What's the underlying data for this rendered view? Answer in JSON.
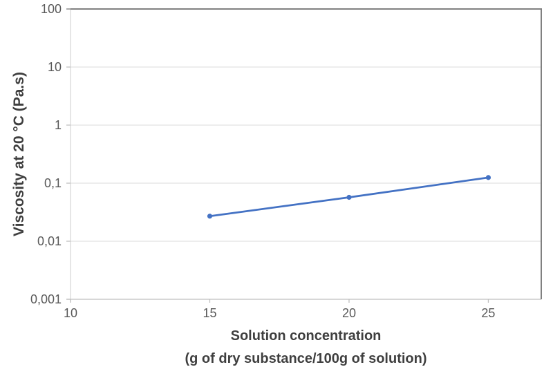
{
  "chart_data": {
    "type": "line",
    "title": "",
    "x": [
      15,
      20,
      25
    ],
    "series": [
      {
        "name": "viscosity",
        "values": [
          0.027,
          0.057,
          0.125
        ]
      }
    ],
    "xlabel_lines": [
      "Solution concentration",
      "(g of dry substance/100g of solution)"
    ],
    "ylabel": "Viscosity at 20 °C (Pa.s)",
    "x_ticks": [
      10,
      15,
      20,
      25
    ],
    "y_ticks": [
      {
        "value": 100,
        "label": "100"
      },
      {
        "value": 10,
        "label": "10"
      },
      {
        "value": 1,
        "label": "1"
      },
      {
        "value": 0.1,
        "label": "0,1"
      },
      {
        "value": 0.01,
        "label": "0,01"
      },
      {
        "value": 0.001,
        "label": "0,001"
      }
    ],
    "xlim": [
      10,
      26.9
    ],
    "ylim": [
      0.001,
      100
    ],
    "y_scale": "log",
    "grid": "horizontal-only",
    "legend": "none",
    "colors": {
      "line": "#4472C4",
      "marker": "#4472C4",
      "gridline": "#E2E2E2",
      "left_axis_line": "#D9D9D9",
      "bottom_axis_line": "#BFBFBF",
      "tick_mark": "#BFBFBF",
      "plot_border": "#808080",
      "tick_label": "#595959",
      "axis_title": "#3F3F3F",
      "background": "#FFFFFF"
    }
  }
}
